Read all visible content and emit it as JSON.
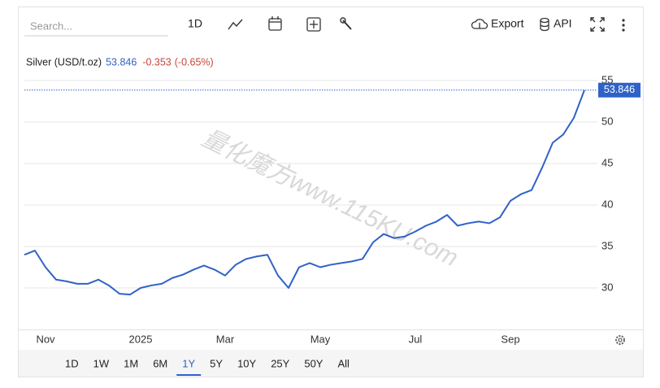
{
  "toolbar": {
    "search_placeholder": "Search...",
    "interval": "1D",
    "export": "Export",
    "api": "API"
  },
  "chart_data": {
    "type": "line",
    "title": "Silver (USD/t.oz)",
    "change": "-0.353",
    "change_pct": "(-0.65%)",
    "watermark": "量化魔方www.115KU.com",
    "categories": [
      null,
      null,
      "Nov",
      null,
      null,
      null,
      null,
      null,
      null,
      null,
      null,
      "2025",
      null,
      null,
      null,
      null,
      null,
      null,
      null,
      "Mar",
      null,
      null,
      null,
      null,
      null,
      null,
      null,
      null,
      "May",
      null,
      null,
      null,
      null,
      null,
      null,
      null,
      null,
      "Jul",
      null,
      null,
      null,
      null,
      null,
      null,
      null,
      null,
      "Sep",
      null,
      null,
      null,
      null,
      null,
      null,
      null
    ],
    "series": [
      {
        "name": "Silver (USD/t.oz)",
        "color": "#2f62c8",
        "values": [
          34,
          34.5,
          32.5,
          31,
          30.8,
          30.5,
          30.5,
          31,
          30.3,
          29.3,
          29.2,
          30,
          30.3,
          30.5,
          31.2,
          31.6,
          32.2,
          32.7,
          32.2,
          31.5,
          32.8,
          33.5,
          33.8,
          34,
          31.5,
          30,
          32.5,
          33,
          32.5,
          32.8,
          33,
          33.2,
          33.5,
          35.5,
          36.5,
          36,
          36.2,
          36.8,
          37.5,
          38,
          38.8,
          37.5,
          37.8,
          38,
          37.8,
          38.5,
          40.5,
          41.3,
          41.8,
          44.5,
          47.5,
          48.5,
          50.5,
          53.846
        ]
      }
    ],
    "ylim": [
      25,
      56
    ],
    "yticks": [
      30,
      35,
      40,
      45,
      50,
      55
    ],
    "grid": true,
    "change_color": "#c8453c"
  },
  "range_buttons": {
    "items": [
      "1D",
      "1W",
      "1M",
      "6M",
      "1Y",
      "5Y",
      "10Y",
      "25Y",
      "50Y",
      "All"
    ],
    "selected": "1Y"
  }
}
